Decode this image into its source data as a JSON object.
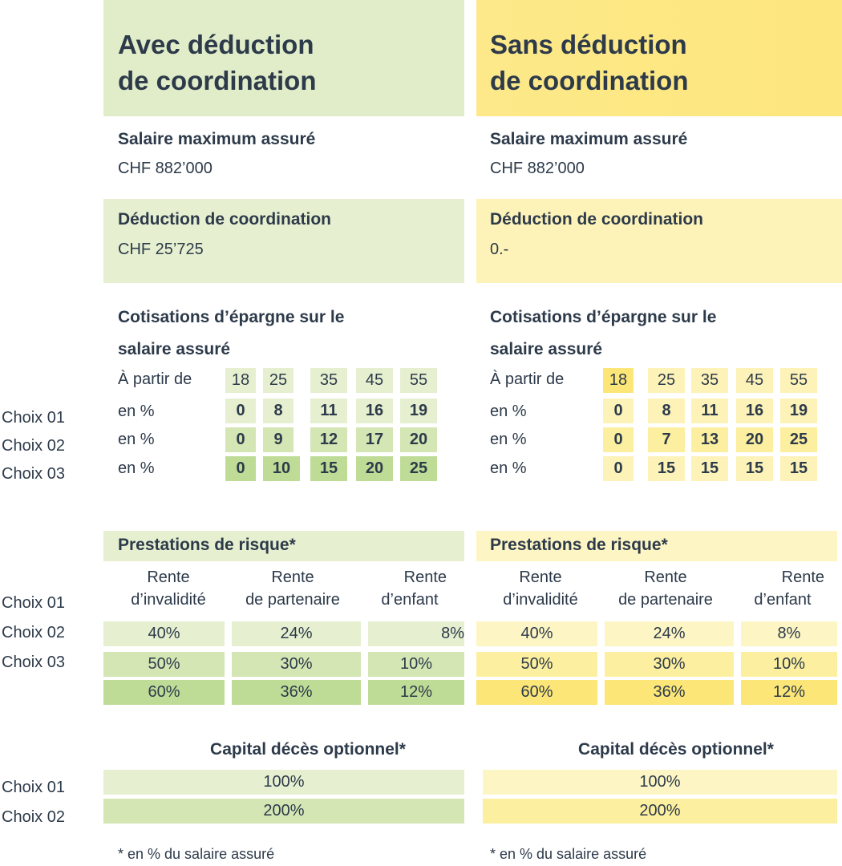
{
  "left": {
    "heading_line1": "Avec déduction",
    "heading_line2": "de coordination",
    "max_salary_title": "Salaire maximum assuré",
    "max_salary_value": "CHF 882’000",
    "coord_title": "Déduction de coordination",
    "coord_value": "CHF 25’725",
    "savings_title_line1": "Cotisations d’épargne sur le",
    "savings_title_line2": "salaire assuré",
    "age_label": "À partir de",
    "ages": [
      "18",
      "25",
      "35",
      "45",
      "55"
    ],
    "row_label": "en %",
    "choices": [
      [
        "0",
        "8",
        "11",
        "16",
        "19"
      ],
      [
        "0",
        "9",
        "12",
        "17",
        "20"
      ],
      [
        "0",
        "10",
        "15",
        "20",
        "25"
      ]
    ],
    "risk_title": "Prestations de risque*",
    "risk_headers": [
      [
        "Rente",
        "d’invalidité"
      ],
      [
        "Rente",
        "de partenaire"
      ],
      [
        "Rente",
        "d’enfant"
      ]
    ],
    "risk_rows": [
      [
        "40%",
        "24%",
        "8%"
      ],
      [
        "50%",
        "30%",
        "10%"
      ],
      [
        "60%",
        "36%",
        "12%"
      ]
    ],
    "capital_title": "Capital décès optionnel*",
    "capital_rows": [
      "100%",
      "200%"
    ],
    "footnote": "* en % du salaire assuré"
  },
  "right": {
    "heading_line1": "Sans déduction",
    "heading_line2": "de coordination",
    "max_salary_title": "Salaire maximum assuré",
    "max_salary_value": "CHF 882’000",
    "coord_title": "Déduction de coordination",
    "coord_value": "0.-",
    "savings_title_line1": "Cotisations d’épargne sur le",
    "savings_title_line2": "salaire assuré",
    "age_label": "À partir de",
    "ages": [
      "18",
      "25",
      "35",
      "45",
      "55"
    ],
    "row_label": "en %",
    "choices": [
      [
        "0",
        "8",
        "11",
        "16",
        "19"
      ],
      [
        "0",
        "7",
        "13",
        "20",
        "25"
      ],
      [
        "0",
        "15",
        "15",
        "15",
        "15"
      ]
    ],
    "risk_title": "Prestations de risque*",
    "risk_headers": [
      [
        "Rente",
        "d’invalidité"
      ],
      [
        "Rente",
        "de partenaire"
      ],
      [
        "Rente",
        "d’enfant"
      ]
    ],
    "risk_rows": [
      [
        "40%",
        "24%",
        "8%"
      ],
      [
        "50%",
        "30%",
        "10%"
      ],
      [
        "60%",
        "36%",
        "12%"
      ]
    ],
    "capital_title": "Capital décès optionnel*",
    "capital_rows": [
      "100%",
      "200%"
    ],
    "footnote": "* en % du salaire assuré"
  },
  "side_labels": {
    "choix01": "Choix 01",
    "choix02": "Choix 02",
    "choix03": "Choix 03"
  },
  "colors": {
    "green_light": "#e6f0d0",
    "green_mid": "#d3e6b4",
    "green_dark": "#bfdc97",
    "yellow_light": "#fdf6c4",
    "yellow_mid": "#fcef9f",
    "yellow_dark": "#fbe677",
    "text": "#2d3a4a"
  }
}
